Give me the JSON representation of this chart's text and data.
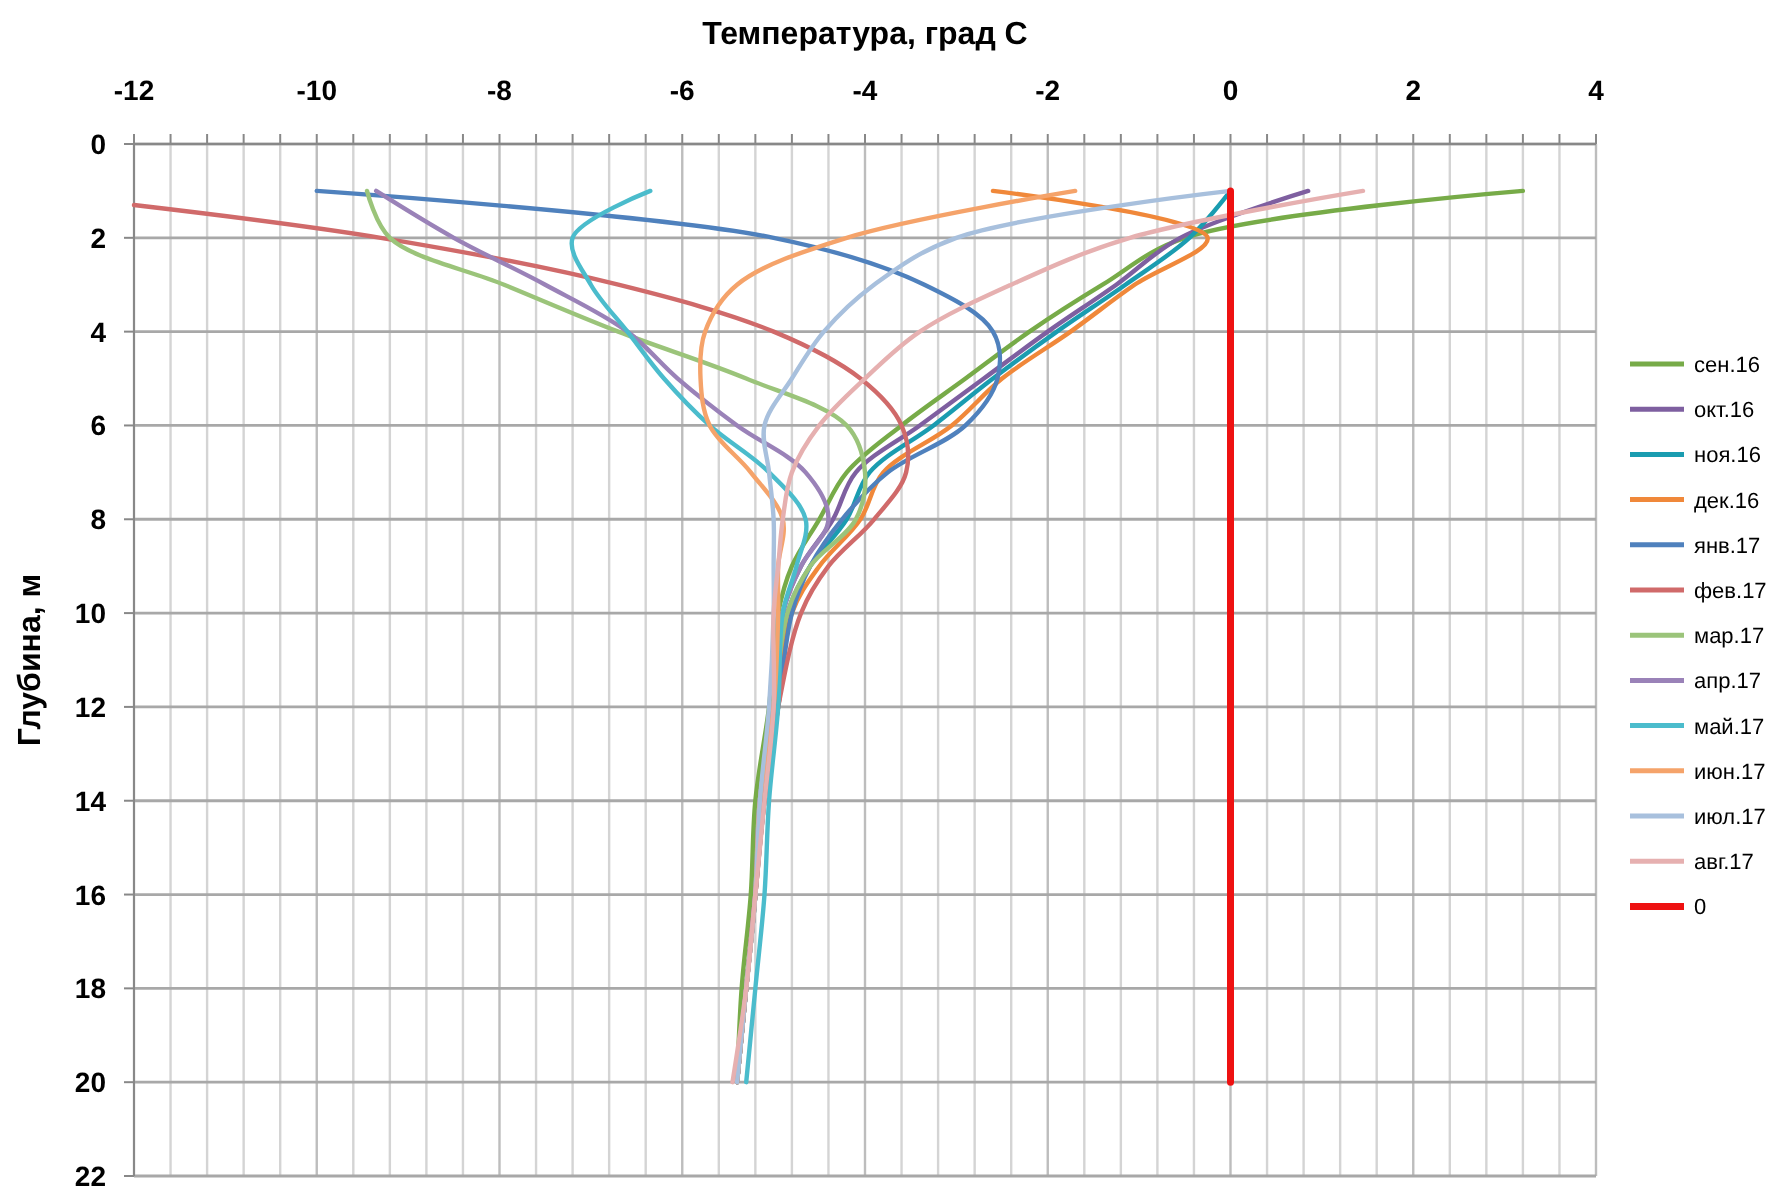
{
  "chart_data": {
    "type": "line",
    "xlabel": "Температура, град С",
    "ylabel": "Глубина, м",
    "xlim": [
      -12,
      4
    ],
    "ylim": [
      22,
      0
    ],
    "xticks": [
      -12,
      {
        "value": -11.6,
        "label": null
      },
      {
        "value": -11.2,
        "label": null
      },
      {
        "value": -10.8,
        "label": null
      },
      {
        "value": -10.4,
        "label": null
      },
      -10,
      {
        "value": -9.6,
        "label": null
      },
      {
        "value": -9.2,
        "label": null
      },
      {
        "value": -8.8,
        "label": null
      },
      {
        "value": -8.4,
        "label": null
      },
      -8,
      {
        "value": -7.6,
        "label": null
      },
      {
        "value": -7.2,
        "label": null
      },
      {
        "value": -6.8,
        "label": null
      },
      {
        "value": -6.4,
        "label": null
      },
      -6,
      {
        "value": -5.6,
        "label": null
      },
      {
        "value": -5.2,
        "label": null
      },
      {
        "value": -4.8,
        "label": null
      },
      {
        "value": -4.4,
        "label": null
      },
      -4,
      {
        "value": -3.6,
        "label": null
      },
      {
        "value": -3.2,
        "label": null
      },
      {
        "value": -2.8,
        "label": null
      },
      {
        "value": -2.4,
        "label": null
      },
      -2,
      {
        "value": -1.6,
        "label": null
      },
      {
        "value": -1.2,
        "label": null
      },
      {
        "value": -0.8,
        "label": null
      },
      {
        "value": -0.4,
        "label": null
      },
      0,
      {
        "value": 0.4,
        "label": null
      },
      {
        "value": 0.8,
        "label": null
      },
      {
        "value": 1.2,
        "label": null
      },
      {
        "value": 1.6,
        "label": null
      },
      2,
      {
        "value": 2.4,
        "label": null
      },
      {
        "value": 2.8,
        "label": null
      },
      {
        "value": 3.2,
        "label": null
      },
      {
        "value": 3.6,
        "label": null
      },
      4
    ],
    "yticks": [
      0,
      2,
      4,
      6,
      8,
      10,
      12,
      14,
      16,
      18,
      20,
      22
    ],
    "grid": true,
    "legend": "right",
    "line_style": "solid",
    "series": [
      {
        "name": "сен.16",
        "color": "#77ab48",
        "x": [
          3.2,
          -0.5,
          -1.4,
          -2.2,
          -2.9,
          -3.6,
          -4.2,
          -4.5,
          -4.8,
          -4.95,
          -5.05,
          -5.2,
          -5.25,
          -5.35,
          -5.4
        ],
        "values": [
          1,
          2,
          3,
          4,
          5,
          6,
          7,
          8,
          9,
          10,
          12,
          14,
          16,
          18,
          20
        ]
      },
      {
        "name": "окт.16",
        "color": "#7e5fa0",
        "x": [
          0.85,
          -0.55,
          -1.25,
          -2.0,
          -2.7,
          -3.4,
          -4.1,
          -4.35,
          -4.7,
          -4.9,
          -5.0,
          -5.15,
          -5.2,
          -5.3,
          -5.4
        ],
        "values": [
          1,
          2,
          3,
          4,
          5,
          6,
          7,
          8,
          9,
          10,
          12,
          14,
          16,
          18,
          20
        ]
      },
      {
        "name": "ноя.16",
        "color": "#1a9cb0",
        "x": [
          0,
          -0.45,
          -1.15,
          -1.9,
          -2.6,
          -3.25,
          -3.95,
          -4.2,
          -4.6,
          -4.85,
          -5.0,
          -5.15,
          -5.2,
          -5.3,
          -5.4
        ],
        "values": [
          1,
          2,
          3,
          4,
          5,
          6,
          7,
          8,
          9,
          10,
          12,
          14,
          16,
          18,
          20
        ]
      },
      {
        "name": "дек.16",
        "color": "#f0883a",
        "x": [
          -2.6,
          -0.25,
          -1.05,
          -1.75,
          -2.5,
          -3.05,
          -3.8,
          -4.05,
          -4.5,
          -4.8,
          -4.95,
          -5.1,
          -5.2,
          -5.3,
          -5.4
        ],
        "values": [
          1,
          2,
          3,
          4,
          5,
          6,
          7,
          8,
          9,
          10,
          12,
          14,
          16,
          18,
          20
        ]
      },
      {
        "name": "янв.17",
        "color": "#4f81bd",
        "x": [
          -10,
          -5,
          -3.35,
          -2.6,
          -2.55,
          -2.9,
          -3.75,
          -4.25,
          -4.6,
          -4.8,
          -4.95,
          -5.1,
          -5.2,
          -5.3,
          -5.4
        ],
        "values": [
          1,
          2,
          3,
          4,
          5,
          6,
          7,
          8,
          9,
          10,
          12,
          14,
          16,
          18,
          20
        ]
      },
      {
        "name": "фев.17",
        "color": "#d06a6a",
        "x": [
          -12,
          -9.3,
          -6.7,
          -5,
          -4.05,
          -3.6,
          -3.55,
          -3.9,
          -4.4,
          -4.7,
          -4.95,
          -5.1,
          -5.2,
          -5.3,
          -5.4
        ],
        "values": [
          1.3,
          2,
          3,
          4,
          5,
          6,
          7,
          8,
          9,
          10,
          12,
          14,
          16,
          18,
          20
        ]
      },
      {
        "name": "мар.17",
        "color": "#9bc47a",
        "x": [
          -9.45,
          -9.2,
          -7.95,
          -6.7,
          -5.3,
          -4.2,
          -4.0,
          -4.1,
          -4.6,
          -4.85,
          -5.0,
          -5.15,
          -5.2,
          -5.3,
          -5.4
        ],
        "values": [
          1,
          2,
          3,
          4,
          5,
          6,
          7,
          8,
          9,
          10,
          12,
          14,
          16,
          18,
          20
        ]
      },
      {
        "name": "апр.17",
        "color": "#9a82b8",
        "x": [
          -9.35,
          -8.5,
          -7.5,
          -6.6,
          -6.05,
          -5.4,
          -4.65,
          -4.4,
          -4.7,
          -4.9,
          -5.0,
          -5.15,
          -5.2,
          -5.3,
          -5.4
        ],
        "values": [
          1,
          2,
          3,
          4,
          5,
          6,
          7,
          8,
          9,
          10,
          12,
          14,
          16,
          18,
          20
        ]
      },
      {
        "name": "май.17",
        "color": "#4bbccc",
        "x": [
          -6.35,
          -7.2,
          -7.0,
          -6.6,
          -6.2,
          -5.7,
          -5.05,
          -4.65,
          -4.75,
          -4.9,
          -4.95,
          -5.05,
          -5.1,
          -5.2,
          -5.3
        ],
        "values": [
          1,
          2,
          3,
          4,
          5,
          6,
          7,
          8,
          9,
          10,
          12,
          14,
          16,
          18,
          20
        ]
      },
      {
        "name": "июн.17",
        "color": "#f5a36a",
        "x": [
          -1.7,
          -4.2,
          -5.4,
          -5.75,
          -5.8,
          -5.7,
          -5.25,
          -4.9,
          -4.95,
          -4.95,
          -5.0,
          -5.15,
          -5.2,
          -5.3,
          -5.4
        ],
        "values": [
          1,
          2,
          3,
          4,
          5,
          6,
          7,
          8,
          9,
          10,
          12,
          14,
          16,
          18,
          20
        ]
      },
      {
        "name": "июл.17",
        "color": "#a8c0dd",
        "x": [
          0,
          -3.0,
          -3.9,
          -4.45,
          -4.8,
          -5.1,
          -5.05,
          -5.0,
          -5.0,
          -5.0,
          -5.05,
          -5.15,
          -5.2,
          -5.3,
          -5.4
        ],
        "values": [
          1,
          2,
          3,
          4,
          5,
          6,
          7,
          8,
          9,
          10,
          12,
          14,
          16,
          18,
          20
        ]
      },
      {
        "name": "авг.17",
        "color": "#e6b0b0",
        "x": [
          1.45,
          -1.1,
          -2.4,
          -3.4,
          -4.0,
          -4.5,
          -4.8,
          -4.9,
          -4.95,
          -5.0,
          -5.0,
          -5.1,
          -5.2,
          -5.3,
          -5.45
        ],
        "values": [
          1,
          2,
          3,
          4,
          5,
          6,
          7,
          8,
          9,
          10,
          12,
          14,
          16,
          18,
          20
        ]
      },
      {
        "name": "0",
        "color": "#ee1111",
        "x": [
          0,
          0
        ],
        "values": [
          1,
          20
        ]
      }
    ]
  }
}
